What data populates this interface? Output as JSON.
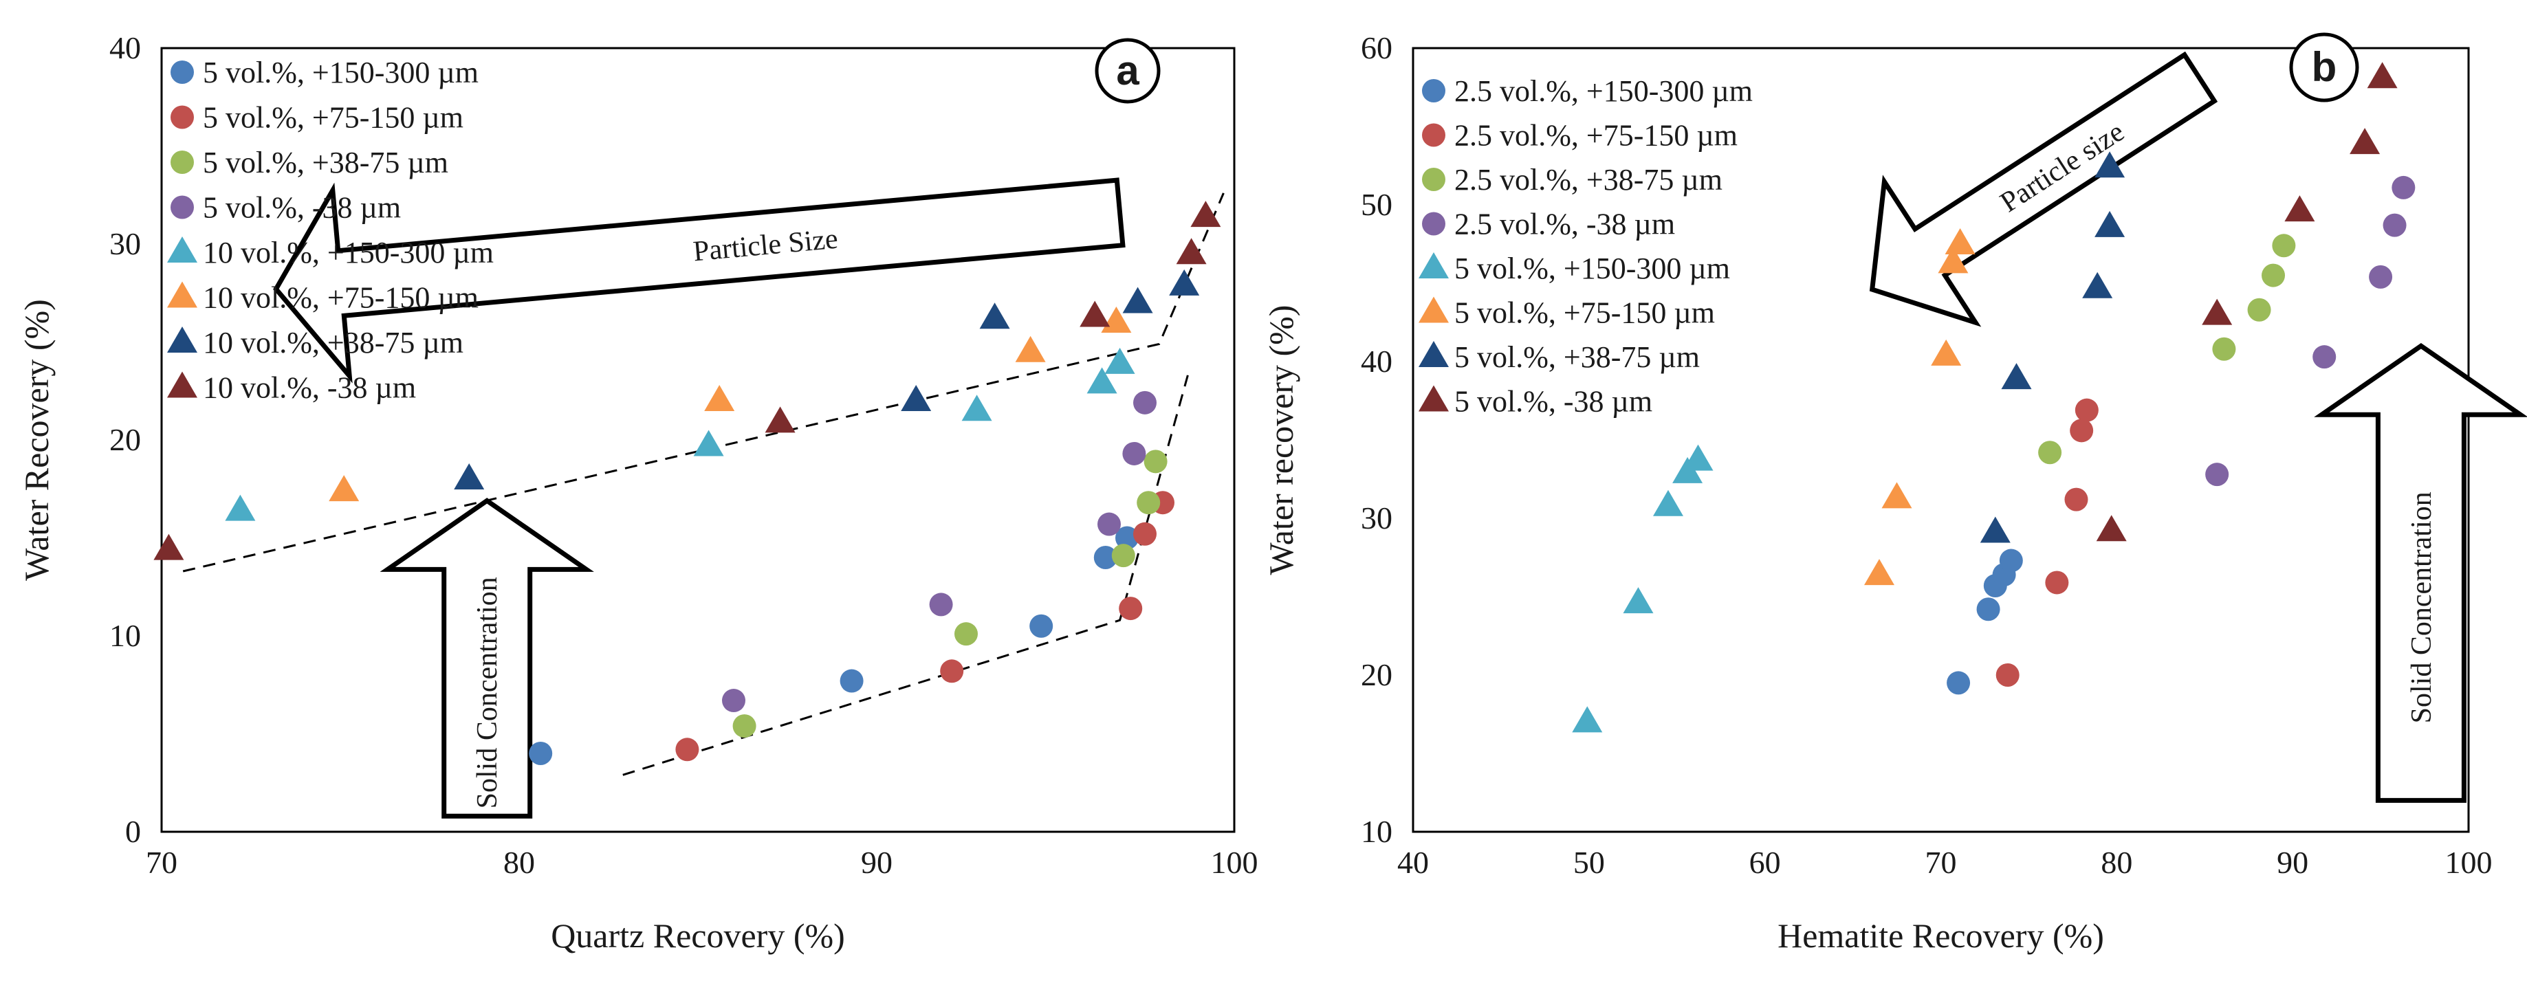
{
  "chart_data": [
    {
      "type": "scatter",
      "panel_label": "a",
      "xlabel": "Quartz Recovery (%)",
      "ylabel": "Water Recovery (%)",
      "xlim": [
        70,
        100
      ],
      "ylim": [
        0,
        40
      ],
      "xticks": [
        70,
        80,
        90,
        100
      ],
      "yticks": [
        0,
        10,
        20,
        30,
        40
      ],
      "grid": false,
      "legend_position": "top-left",
      "annotations": {
        "arrow_horizontal": "Particle Size",
        "arrow_vertical": "Solid Concentration"
      },
      "series": [
        {
          "name": "5 vol.%, +150-300 µm",
          "marker": "circle",
          "color": "#4a7ebb",
          "points": [
            [
              80.6,
              4
            ],
            [
              89.3,
              7.7
            ],
            [
              94.6,
              10.5
            ],
            [
              96.4,
              14
            ],
            [
              97.0,
              15
            ]
          ]
        },
        {
          "name": "5 vol.%, +75-150 µm",
          "marker": "circle",
          "color": "#c0504d",
          "points": [
            [
              84.7,
              4.2
            ],
            [
              92.1,
              8.2
            ],
            [
              97.1,
              11.4
            ],
            [
              97.5,
              15.2
            ],
            [
              98.0,
              16.8
            ]
          ]
        },
        {
          "name": "5 vol.%, +38-75 µm",
          "marker": "circle",
          "color": "#9bbb59",
          "points": [
            [
              86.3,
              5.4
            ],
            [
              92.5,
              10.1
            ],
            [
              96.9,
              14.1
            ],
            [
              97.6,
              16.8
            ],
            [
              97.8,
              18.9
            ]
          ]
        },
        {
          "name": "5 vol.%, -38 µm",
          "marker": "circle",
          "color": "#8064a2",
          "points": [
            [
              86.0,
              6.7
            ],
            [
              91.8,
              11.6
            ],
            [
              96.5,
              15.7
            ],
            [
              97.2,
              19.3
            ],
            [
              97.5,
              21.9
            ]
          ]
        },
        {
          "name": "10 vol.%, +150-300 µm",
          "marker": "triangle",
          "color": "#4bacc6",
          "points": [
            [
              72.2,
              16.4
            ],
            [
              85.3,
              19.7
            ],
            [
              92.8,
              21.5
            ],
            [
              96.3,
              22.9
            ],
            [
              96.8,
              23.9
            ]
          ]
        },
        {
          "name": "10 vol.%, +75-150 µm",
          "marker": "triangle",
          "color": "#f79646",
          "points": [
            [
              75.1,
              17.4
            ],
            [
              85.6,
              22
            ],
            [
              94.3,
              24.5
            ],
            [
              96.7,
              26
            ]
          ]
        },
        {
          "name": "10 vol.%, +38-75 µm",
          "marker": "triangle",
          "color": "#1f497d",
          "points": [
            [
              78.6,
              18
            ],
            [
              91.1,
              22
            ],
            [
              93.3,
              26.2
            ],
            [
              97.3,
              27
            ],
            [
              98.6,
              27.9
            ]
          ]
        },
        {
          "name": "10 vol.%, -38 µm",
          "marker": "triangle",
          "color": "#7b2c2c",
          "points": [
            [
              70.2,
              14.4
            ],
            [
              87.3,
              20.9
            ],
            [
              96.1,
              26.3
            ],
            [
              98.8,
              29.5
            ],
            [
              99.2,
              31.4
            ]
          ]
        }
      ],
      "trend_lines": [
        [
          [
            70.6,
            13.3
          ],
          [
            97.9,
            24.9
          ],
          [
            99.7,
            32.6
          ]
        ],
        [
          [
            82.9,
            2.9
          ],
          [
            96.8,
            10.8
          ],
          [
            98.7,
            23.3
          ]
        ]
      ],
      "arrows": {
        "horizontal": {
          "tip": [
            73.2,
            27.7
          ],
          "tail": [
            96.8,
            31.6
          ]
        },
        "vertical": {
          "tip": [
            79.1,
            16.9
          ],
          "tail": [
            79.1,
            0.8
          ]
        }
      }
    },
    {
      "type": "scatter",
      "panel_label": "b",
      "xlabel": "Hematite Recovery (%)",
      "ylabel": "Water recovery (%)",
      "xlim": [
        40,
        100
      ],
      "ylim": [
        10,
        60
      ],
      "xticks": [
        40,
        50,
        60,
        70,
        80,
        90,
        100
      ],
      "yticks": [
        10,
        20,
        30,
        40,
        50,
        60
      ],
      "grid": false,
      "legend_position": "top-left",
      "annotations": {
        "arrow_horizontal": "Particle size",
        "arrow_vertical": "Solid Concentration"
      },
      "series": [
        {
          "name": "2.5 vol.%, +150-300 µm",
          "marker": "circle",
          "color": "#4a7ebb",
          "points": [
            [
              71,
              19.5
            ],
            [
              72.7,
              24.2
            ],
            [
              73.1,
              25.7
            ],
            [
              73.6,
              26.4
            ],
            [
              74,
              27.3
            ]
          ]
        },
        {
          "name": "2.5 vol.%, +75-150 µm",
          "marker": "circle",
          "color": "#c0504d",
          "points": [
            [
              73.8,
              20
            ],
            [
              76.6,
              25.9
            ],
            [
              77.7,
              31.2
            ],
            [
              78,
              35.6
            ],
            [
              78.3,
              36.9
            ]
          ]
        },
        {
          "name": "2.5 vol.%, +38-75 µm",
          "marker": "circle",
          "color": "#9bbb59",
          "points": [
            [
              76.2,
              34.2
            ],
            [
              86.1,
              40.8
            ],
            [
              88.1,
              43.3
            ],
            [
              88.9,
              45.5
            ],
            [
              89.5,
              47.4
            ]
          ]
        },
        {
          "name": "2.5 vol.%, -38 µm",
          "marker": "circle",
          "color": "#8064a2",
          "points": [
            [
              85.7,
              32.8
            ],
            [
              91.8,
              40.3
            ],
            [
              95,
              45.4
            ],
            [
              95.8,
              48.7
            ],
            [
              96.3,
              51.1
            ]
          ]
        },
        {
          "name": "5 vol.%, +150-300 µm",
          "marker": "triangle",
          "color": "#4bacc6",
          "points": [
            [
              49.9,
              17
            ],
            [
              52.8,
              24.6
            ],
            [
              54.5,
              30.8
            ],
            [
              55.6,
              32.9
            ],
            [
              56.2,
              33.7
            ]
          ]
        },
        {
          "name": "5 vol.%, +75-150 µm",
          "marker": "triangle",
          "color": "#f79646",
          "points": [
            [
              66.5,
              26.4
            ],
            [
              67.5,
              31.3
            ],
            [
              70.3,
              40.4
            ],
            [
              70.7,
              46.3
            ],
            [
              71.1,
              47.5
            ]
          ]
        },
        {
          "name": "5 vol.%, +38-75 µm",
          "marker": "triangle",
          "color": "#1f497d",
          "points": [
            [
              73.1,
              29.1
            ],
            [
              74.3,
              38.9
            ],
            [
              78.9,
              44.7
            ],
            [
              79.6,
              48.6
            ],
            [
              79.6,
              52.4
            ]
          ]
        },
        {
          "name": "5 vol.%, -38 µm",
          "marker": "triangle",
          "color": "#7b2c2c",
          "points": [
            [
              79.7,
              29.2
            ],
            [
              85.7,
              43
            ],
            [
              90.4,
              49.6
            ],
            [
              94.1,
              53.9
            ],
            [
              95.1,
              58.1
            ]
          ]
        }
      ],
      "arrows": {
        "horizontal": {
          "tip": [
            66.1,
            44.6
          ],
          "tail": [
            84.7,
            58.1
          ]
        },
        "vertical": {
          "tip": [
            97.3,
            41
          ],
          "tail": [
            97.3,
            12
          ]
        }
      }
    }
  ]
}
